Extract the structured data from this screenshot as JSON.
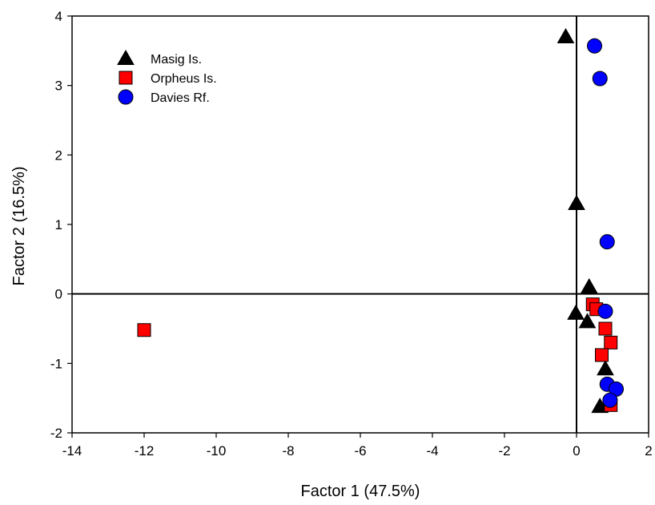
{
  "chart_data": {
    "type": "scatter",
    "xlabel": "Factor 1 (47.5%)",
    "ylabel": "Factor 2 (16.5%)",
    "xlim": [
      -14,
      2
    ],
    "ylim": [
      -2,
      4
    ],
    "xticks": [
      -14,
      -12,
      -10,
      -8,
      -6,
      -4,
      -2,
      0,
      2
    ],
    "yticks": [
      -2,
      -1,
      0,
      1,
      2,
      3,
      4
    ],
    "xtick_labels": [
      "-14",
      "-12",
      "-10",
      "-8",
      "-6",
      "-4",
      "-2",
      "0",
      "2"
    ],
    "ytick_labels": [
      "-2",
      "-1",
      "0",
      "1",
      "2",
      "3",
      "4"
    ],
    "reference_lines": {
      "x": 0,
      "y": 0
    },
    "grid": false,
    "legend_position": "top-left",
    "series": [
      {
        "name": "Masig Is.",
        "marker": "triangle",
        "color": "#000000",
        "points": [
          {
            "x": -0.3,
            "y": 3.7
          },
          {
            "x": 0.0,
            "y": 1.3
          },
          {
            "x": 0.35,
            "y": 0.1
          },
          {
            "x": -0.02,
            "y": -0.28
          },
          {
            "x": 0.3,
            "y": -0.4
          },
          {
            "x": 0.8,
            "y": -1.08
          },
          {
            "x": 0.65,
            "y": -1.62
          }
        ]
      },
      {
        "name": "Orpheus Is.",
        "marker": "square",
        "color": "#ff0000",
        "points": [
          {
            "x": -12.0,
            "y": -0.52
          },
          {
            "x": 0.45,
            "y": -0.15
          },
          {
            "x": 0.55,
            "y": -0.22
          },
          {
            "x": 0.8,
            "y": -0.5
          },
          {
            "x": 0.95,
            "y": -0.7
          },
          {
            "x": 0.7,
            "y": -0.88
          },
          {
            "x": 0.95,
            "y": -1.6
          }
        ]
      },
      {
        "name": "Davies Rf.",
        "marker": "circle",
        "color": "#0000ff",
        "points": [
          {
            "x": 0.5,
            "y": 3.57
          },
          {
            "x": 0.65,
            "y": 3.1
          },
          {
            "x": 0.85,
            "y": 0.75
          },
          {
            "x": 0.8,
            "y": -0.25
          },
          {
            "x": 0.85,
            "y": -1.3
          },
          {
            "x": 1.1,
            "y": -1.37
          },
          {
            "x": 0.93,
            "y": -1.53
          }
        ]
      }
    ]
  }
}
